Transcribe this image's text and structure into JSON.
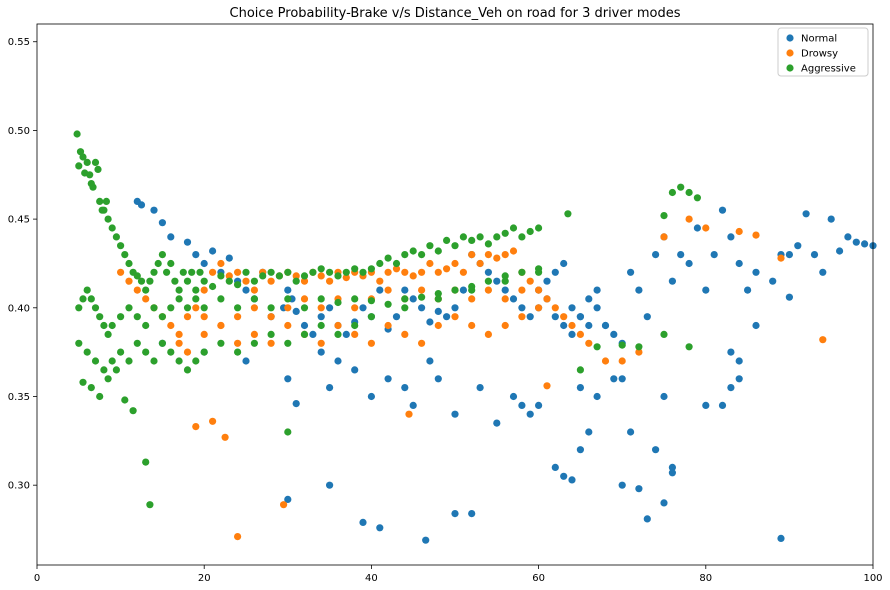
{
  "chart_data": {
    "type": "scatter",
    "title": "Choice Probability-Brake v/s Distance_Veh on road for 3 driver modes",
    "xlabel": "",
    "ylabel": "",
    "xlim": [
      0,
      100
    ],
    "ylim": [
      0.255,
      0.56
    ],
    "x_ticks": [
      0,
      20,
      40,
      60,
      80,
      100
    ],
    "y_ticks": [
      0.3,
      0.35,
      0.4,
      0.45,
      0.5,
      0.55
    ],
    "x_tick_labels": [
      "0",
      "20",
      "40",
      "60",
      "80",
      "100"
    ],
    "y_tick_labels": [
      "0.30",
      "0.35",
      "0.40",
      "0.45",
      "0.50",
      "0.55"
    ],
    "grid": false,
    "legend_position": "top-right",
    "series": [
      {
        "name": "Normal",
        "color": "#1f77b4",
        "x": [
          12,
          12.5,
          14,
          15,
          16,
          18,
          19,
          20,
          21,
          22,
          23,
          24,
          25,
          26,
          27,
          28,
          29.5,
          30,
          30.5,
          31,
          32,
          33,
          34,
          35,
          36,
          37,
          38,
          39,
          40,
          41,
          42,
          43,
          44,
          45,
          46,
          47,
          48,
          49,
          50,
          51,
          52,
          53,
          54,
          55,
          56,
          57,
          58,
          59,
          60,
          61,
          62,
          63,
          64,
          65,
          66,
          67,
          68,
          69,
          70,
          71,
          72,
          73,
          74,
          75,
          76,
          77,
          78,
          79,
          80,
          81,
          82,
          83,
          84,
          85,
          86,
          88,
          89,
          90,
          91,
          92,
          93,
          94,
          95,
          96,
          97,
          98,
          99,
          100,
          15,
          20,
          25,
          30,
          35,
          40,
          45,
          50,
          55,
          60,
          65,
          70,
          75,
          80,
          62,
          63,
          64,
          65,
          66,
          70,
          72,
          75,
          76,
          82,
          83,
          84,
          30,
          31,
          35,
          39,
          41,
          46.5,
          50,
          52,
          73,
          89,
          60,
          61,
          62,
          63,
          64,
          65,
          66,
          67,
          68,
          34,
          36,
          38,
          42,
          44,
          47,
          48,
          53,
          57,
          58,
          59,
          67,
          69,
          71,
          74,
          76,
          83,
          84,
          86,
          90
        ],
        "y": [
          0.46,
          0.458,
          0.455,
          0.448,
          0.44,
          0.437,
          0.43,
          0.425,
          0.432,
          0.42,
          0.428,
          0.415,
          0.41,
          0.405,
          0.42,
          0.395,
          0.4,
          0.41,
          0.405,
          0.398,
          0.39,
          0.385,
          0.395,
          0.4,
          0.39,
          0.385,
          0.392,
          0.4,
          0.395,
          0.41,
          0.388,
          0.395,
          0.41,
          0.405,
          0.4,
          0.392,
          0.398,
          0.395,
          0.4,
          0.41,
          0.43,
          0.425,
          0.42,
          0.415,
          0.41,
          0.405,
          0.4,
          0.395,
          0.4,
          0.405,
          0.395,
          0.39,
          0.385,
          0.395,
          0.39,
          0.4,
          0.39,
          0.385,
          0.38,
          0.42,
          0.41,
          0.395,
          0.43,
          0.44,
          0.415,
          0.43,
          0.425,
          0.445,
          0.41,
          0.43,
          0.455,
          0.44,
          0.425,
          0.41,
          0.42,
          0.415,
          0.43,
          0.43,
          0.435,
          0.453,
          0.43,
          0.42,
          0.45,
          0.432,
          0.44,
          0.437,
          0.436,
          0.435,
          0.38,
          0.375,
          0.37,
          0.36,
          0.355,
          0.35,
          0.345,
          0.34,
          0.335,
          0.345,
          0.355,
          0.36,
          0.35,
          0.345,
          0.31,
          0.305,
          0.303,
          0.32,
          0.33,
          0.3,
          0.298,
          0.29,
          0.307,
          0.345,
          0.355,
          0.36,
          0.292,
          0.346,
          0.3,
          0.279,
          0.276,
          0.269,
          0.284,
          0.284,
          0.281,
          0.27,
          0.41,
          0.415,
          0.42,
          0.425,
          0.4,
          0.395,
          0.405,
          0.41,
          0.39,
          0.375,
          0.37,
          0.365,
          0.36,
          0.355,
          0.37,
          0.36,
          0.355,
          0.35,
          0.345,
          0.34,
          0.35,
          0.36,
          0.33,
          0.32,
          0.31,
          0.375,
          0.37,
          0.39,
          0.406
        ]
      },
      {
        "name": "Drowsy",
        "color": "#ff7f0e",
        "x": [
          10,
          11,
          12,
          13,
          14,
          15,
          16,
          17,
          18,
          19,
          20,
          21,
          22,
          23,
          24,
          25,
          26,
          27,
          28,
          29,
          30,
          31,
          32,
          33,
          34,
          35,
          36,
          37,
          38,
          39,
          40,
          41,
          42,
          43,
          44,
          45,
          46,
          47,
          48,
          49,
          50,
          51,
          52,
          53,
          54,
          55,
          56,
          57,
          58,
          59,
          60,
          61,
          62,
          63,
          64,
          65,
          66,
          17,
          18,
          20,
          22,
          24,
          26,
          28,
          30,
          32,
          34,
          36,
          38,
          40,
          42,
          44,
          46,
          48,
          50,
          52,
          54,
          56,
          58,
          60,
          20,
          22,
          24,
          26,
          28,
          30,
          32,
          34,
          36,
          38,
          40,
          42,
          44,
          46,
          48,
          50,
          52,
          54,
          56,
          58,
          19,
          21,
          22.5,
          24,
          29.5,
          44.5,
          61,
          68,
          70,
          72,
          75,
          78,
          80,
          84,
          86,
          89,
          94
        ],
        "y": [
          0.42,
          0.415,
          0.41,
          0.405,
          0.4,
          0.395,
          0.39,
          0.385,
          0.395,
          0.4,
          0.41,
          0.42,
          0.425,
          0.418,
          0.42,
          0.415,
          0.41,
          0.42,
          0.415,
          0.418,
          0.42,
          0.418,
          0.415,
          0.42,
          0.418,
          0.415,
          0.42,
          0.417,
          0.42,
          0.418,
          0.42,
          0.415,
          0.42,
          0.422,
          0.42,
          0.418,
          0.42,
          0.425,
          0.42,
          0.422,
          0.425,
          0.42,
          0.43,
          0.425,
          0.43,
          0.428,
          0.43,
          0.432,
          0.42,
          0.415,
          0.41,
          0.405,
          0.4,
          0.395,
          0.39,
          0.385,
          0.38,
          0.38,
          0.375,
          0.385,
          0.39,
          0.38,
          0.385,
          0.38,
          0.39,
          0.385,
          0.38,
          0.39,
          0.385,
          0.38,
          0.39,
          0.385,
          0.38,
          0.39,
          0.395,
          0.39,
          0.385,
          0.39,
          0.395,
          0.4,
          0.395,
          0.39,
          0.395,
          0.4,
          0.395,
          0.4,
          0.405,
          0.4,
          0.405,
          0.4,
          0.405,
          0.41,
          0.405,
          0.41,
          0.405,
          0.41,
          0.405,
          0.41,
          0.405,
          0.41,
          0.333,
          0.336,
          0.327,
          0.271,
          0.289,
          0.34,
          0.356,
          0.37,
          0.37,
          0.375,
          0.44,
          0.45,
          0.445,
          0.443,
          0.441,
          0.428,
          0.382
        ]
      },
      {
        "name": "Aggressive",
        "color": "#2ca02c",
        "x": [
          4.8,
          5,
          5.2,
          5.5,
          5.7,
          6,
          6.3,
          6.5,
          6.7,
          7,
          7.3,
          7.5,
          7.8,
          8,
          8.3,
          8.5,
          9,
          9.5,
          10,
          10.5,
          11,
          11.5,
          12,
          12.5,
          13,
          13.5,
          14,
          14.5,
          15,
          15.5,
          16,
          16.5,
          17,
          17.5,
          18,
          18.5,
          19,
          19.5,
          20,
          21,
          22,
          23,
          24,
          25,
          26,
          27,
          28,
          29,
          30,
          31,
          32,
          33,
          34,
          35,
          36,
          37,
          38,
          39,
          40,
          41,
          42,
          43,
          44,
          45,
          46,
          47,
          48,
          49,
          50,
          51,
          52,
          53,
          54,
          55,
          56,
          57,
          58,
          59,
          60,
          5,
          5.5,
          6,
          6.5,
          7,
          7.5,
          8,
          8.5,
          9,
          10,
          11,
          12,
          13,
          14,
          15,
          16,
          17,
          18,
          19,
          20,
          22,
          24,
          26,
          28,
          30,
          32,
          34,
          36,
          38,
          40,
          42,
          44,
          46,
          48,
          50,
          52,
          54,
          56,
          58,
          60,
          5,
          6,
          7,
          8,
          9,
          10,
          11,
          12,
          13,
          14,
          15,
          16,
          17,
          18,
          19,
          20,
          22,
          24,
          26,
          28,
          30,
          32,
          34,
          36,
          38,
          40,
          44,
          48,
          52,
          56,
          60,
          5.5,
          6.5,
          7.5,
          8.5,
          9.5,
          10.5,
          13,
          13.5,
          11.5,
          30,
          63.5,
          65,
          67,
          70,
          72,
          75,
          76,
          77,
          78,
          79,
          75,
          78
        ],
        "y": [
          0.498,
          0.48,
          0.488,
          0.485,
          0.476,
          0.482,
          0.475,
          0.47,
          0.468,
          0.482,
          0.478,
          0.46,
          0.455,
          0.455,
          0.46,
          0.45,
          0.445,
          0.44,
          0.435,
          0.43,
          0.425,
          0.42,
          0.418,
          0.415,
          0.41,
          0.415,
          0.42,
          0.425,
          0.43,
          0.42,
          0.425,
          0.415,
          0.41,
          0.42,
          0.415,
          0.42,
          0.41,
          0.42,
          0.415,
          0.412,
          0.418,
          0.415,
          0.413,
          0.42,
          0.415,
          0.418,
          0.42,
          0.418,
          0.42,
          0.415,
          0.418,
          0.42,
          0.422,
          0.42,
          0.418,
          0.42,
          0.422,
          0.42,
          0.422,
          0.425,
          0.428,
          0.425,
          0.43,
          0.432,
          0.43,
          0.435,
          0.432,
          0.438,
          0.435,
          0.44,
          0.438,
          0.44,
          0.436,
          0.44,
          0.442,
          0.445,
          0.44,
          0.443,
          0.445,
          0.4,
          0.405,
          0.41,
          0.405,
          0.4,
          0.395,
          0.39,
          0.385,
          0.39,
          0.395,
          0.4,
          0.395,
          0.39,
          0.4,
          0.395,
          0.4,
          0.405,
          0.4,
          0.405,
          0.4,
          0.405,
          0.4,
          0.405,
          0.4,
          0.405,
          0.4,
          0.405,
          0.403,
          0.405,
          0.404,
          0.402,
          0.405,
          0.406,
          0.408,
          0.41,
          0.412,
          0.415,
          0.418,
          0.42,
          0.422,
          0.38,
          0.375,
          0.37,
          0.365,
          0.37,
          0.375,
          0.37,
          0.38,
          0.375,
          0.37,
          0.38,
          0.375,
          0.37,
          0.365,
          0.37,
          0.375,
          0.38,
          0.375,
          0.38,
          0.385,
          0.38,
          0.385,
          0.39,
          0.385,
          0.39,
          0.395,
          0.4,
          0.405,
          0.41,
          0.415,
          0.42,
          0.358,
          0.355,
          0.35,
          0.36,
          0.365,
          0.348,
          0.313,
          0.289,
          0.342,
          0.33,
          0.453,
          0.365,
          0.378,
          0.379,
          0.378,
          0.452,
          0.465,
          0.468,
          0.465,
          0.462,
          0.385,
          0.378
        ]
      }
    ]
  }
}
